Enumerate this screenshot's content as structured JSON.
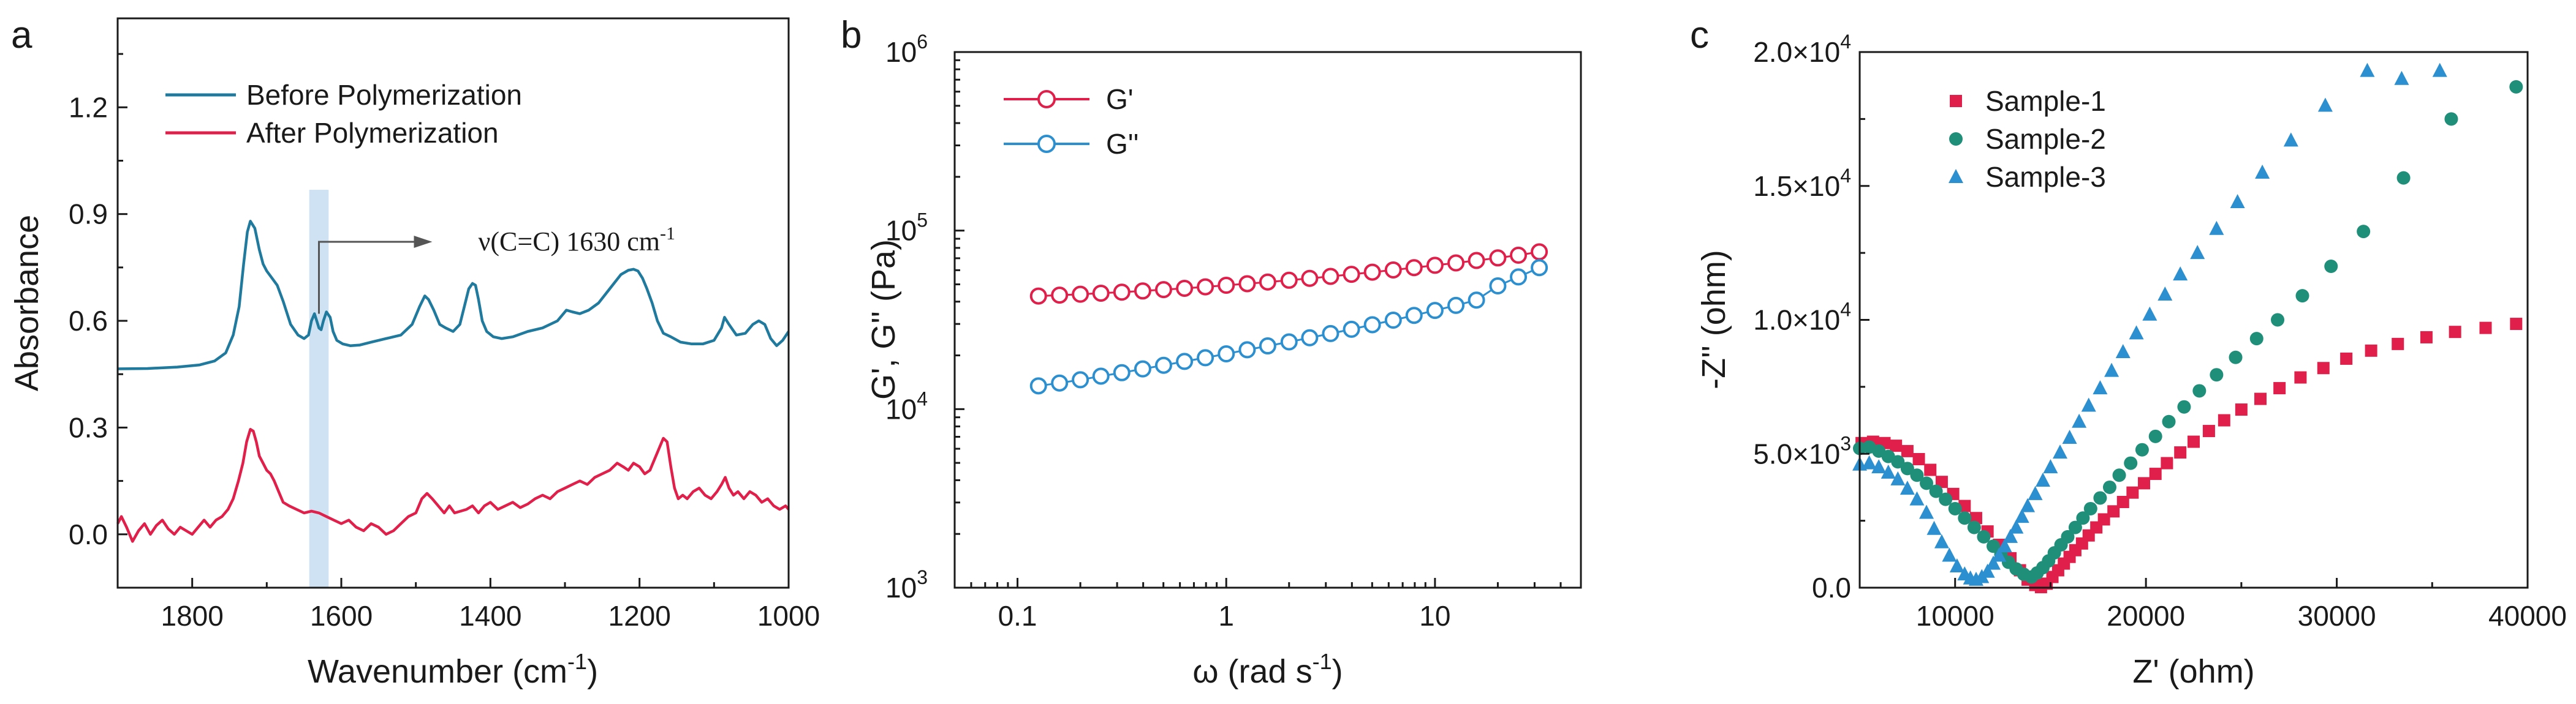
{
  "colors": {
    "teal_blue": "#1f7a9e",
    "crimson": "#e0204a",
    "light_blue": "#2b8fd0",
    "green": "#1f8f7a",
    "highlight": "#cfe2f3",
    "axis": "#1a1a1a"
  },
  "chart_data": [
    {
      "panel": "a",
      "type": "line",
      "xlabel": "Wavenumber (cm",
      "xlabel_sup": "-1",
      "xlabel_end": ")",
      "ylabel": "Absorbance",
      "xlim": [
        1900,
        1000
      ],
      "ylim": [
        -0.15,
        1.45
      ],
      "x_reversed": true,
      "xticks": [
        1800,
        1600,
        1400,
        1200,
        1000
      ],
      "yticks": [
        0.0,
        0.3,
        0.6,
        0.9,
        1.2
      ],
      "ytick_labels": [
        "0.0",
        "0.3",
        "0.6",
        "0.9",
        "1.2"
      ],
      "legend": "top-left",
      "annotation": {
        "text": "ν(C=C) 1630 cm",
        "sup": "-1",
        "x": 1630,
        "highlight_band": [
          1643,
          1617
        ]
      },
      "series": [
        {
          "name": "Before Polymerization",
          "color": "#1f7a9e",
          "x": [
            1900,
            1860,
            1820,
            1790,
            1770,
            1755,
            1745,
            1737,
            1731,
            1726,
            1722,
            1716,
            1710,
            1705,
            1700,
            1693,
            1686,
            1678,
            1668,
            1658,
            1650,
            1644,
            1640,
            1636,
            1633,
            1630,
            1627,
            1624,
            1620,
            1615,
            1611,
            1606,
            1598,
            1588,
            1575,
            1560,
            1540,
            1520,
            1505,
            1495,
            1488,
            1483,
            1476,
            1468,
            1460,
            1450,
            1441,
            1435,
            1429,
            1424,
            1420,
            1416,
            1411,
            1405,
            1396,
            1385,
            1370,
            1350,
            1330,
            1310,
            1298,
            1290,
            1280,
            1268,
            1255,
            1240,
            1225,
            1215,
            1208,
            1202,
            1196,
            1190,
            1183,
            1176,
            1168,
            1158,
            1145,
            1130,
            1115,
            1100,
            1090,
            1086,
            1080,
            1070,
            1058,
            1048,
            1040,
            1032,
            1024,
            1016,
            1008,
            1000
          ],
          "y": [
            0.465,
            0.466,
            0.47,
            0.476,
            0.487,
            0.51,
            0.56,
            0.64,
            0.76,
            0.85,
            0.88,
            0.86,
            0.8,
            0.76,
            0.74,
            0.72,
            0.7,
            0.655,
            0.59,
            0.56,
            0.55,
            0.56,
            0.6,
            0.62,
            0.6,
            0.58,
            0.575,
            0.6,
            0.625,
            0.61,
            0.57,
            0.545,
            0.535,
            0.53,
            0.532,
            0.54,
            0.55,
            0.56,
            0.59,
            0.64,
            0.67,
            0.66,
            0.63,
            0.59,
            0.58,
            0.57,
            0.59,
            0.64,
            0.69,
            0.705,
            0.7,
            0.66,
            0.6,
            0.57,
            0.555,
            0.55,
            0.555,
            0.57,
            0.58,
            0.6,
            0.63,
            0.625,
            0.62,
            0.63,
            0.65,
            0.69,
            0.73,
            0.742,
            0.745,
            0.74,
            0.72,
            0.69,
            0.65,
            0.6,
            0.565,
            0.555,
            0.54,
            0.535,
            0.535,
            0.545,
            0.58,
            0.61,
            0.59,
            0.56,
            0.565,
            0.59,
            0.6,
            0.59,
            0.55,
            0.53,
            0.545,
            0.57
          ]
        },
        {
          "name": "After Polymerization",
          "color": "#e0204a",
          "x": [
            1900,
            1895,
            1888,
            1880,
            1872,
            1864,
            1856,
            1848,
            1840,
            1832,
            1824,
            1816,
            1808,
            1800,
            1792,
            1784,
            1776,
            1768,
            1760,
            1752,
            1745,
            1738,
            1732,
            1727,
            1722,
            1718,
            1714,
            1710,
            1705,
            1700,
            1695,
            1690,
            1684,
            1678,
            1670,
            1660,
            1650,
            1640,
            1630,
            1620,
            1610,
            1600,
            1590,
            1580,
            1570,
            1560,
            1550,
            1540,
            1530,
            1520,
            1510,
            1500,
            1492,
            1485,
            1478,
            1470,
            1462,
            1455,
            1448,
            1440,
            1432,
            1424,
            1416,
            1408,
            1400,
            1390,
            1380,
            1370,
            1360,
            1350,
            1340,
            1330,
            1320,
            1310,
            1300,
            1290,
            1280,
            1270,
            1260,
            1250,
            1240,
            1230,
            1222,
            1215,
            1208,
            1200,
            1193,
            1186,
            1180,
            1174,
            1168,
            1163,
            1158,
            1153,
            1148,
            1142,
            1136,
            1128,
            1120,
            1112,
            1104,
            1096,
            1090,
            1085,
            1080,
            1074,
            1068,
            1060,
            1052,
            1044,
            1036,
            1028,
            1020,
            1012,
            1004,
            1000
          ],
          "y": [
            0.03,
            0.05,
            0.02,
            -0.02,
            0.01,
            0.03,
            0.0,
            0.025,
            0.04,
            0.015,
            0.0,
            0.02,
            0.01,
            0.0,
            0.02,
            0.04,
            0.02,
            0.04,
            0.05,
            0.07,
            0.1,
            0.15,
            0.2,
            0.26,
            0.295,
            0.29,
            0.26,
            0.22,
            0.2,
            0.18,
            0.17,
            0.15,
            0.12,
            0.09,
            0.08,
            0.07,
            0.06,
            0.065,
            0.06,
            0.05,
            0.04,
            0.03,
            0.04,
            0.02,
            0.01,
            0.03,
            0.02,
            0.0,
            0.01,
            0.03,
            0.05,
            0.06,
            0.1,
            0.115,
            0.1,
            0.08,
            0.06,
            0.08,
            0.06,
            0.065,
            0.07,
            0.08,
            0.06,
            0.08,
            0.09,
            0.07,
            0.08,
            0.09,
            0.075,
            0.085,
            0.1,
            0.11,
            0.1,
            0.12,
            0.13,
            0.14,
            0.15,
            0.14,
            0.16,
            0.17,
            0.18,
            0.2,
            0.19,
            0.18,
            0.2,
            0.19,
            0.17,
            0.18,
            0.21,
            0.24,
            0.27,
            0.26,
            0.19,
            0.13,
            0.1,
            0.11,
            0.1,
            0.12,
            0.13,
            0.11,
            0.1,
            0.12,
            0.14,
            0.16,
            0.13,
            0.11,
            0.12,
            0.1,
            0.12,
            0.11,
            0.09,
            0.1,
            0.08,
            0.07,
            0.08,
            0.07
          ]
        }
      ]
    },
    {
      "panel": "b",
      "type": "line",
      "xscale": "log",
      "yscale": "log",
      "xlabel": "ω (rad s",
      "xlabel_sup": "-1",
      "xlabel_end": ")",
      "ylabel": "G', G'' (Pa)",
      "xlim": [
        0.05,
        50
      ],
      "ylim": [
        1000,
        1000000
      ],
      "xticks": [
        0.1,
        1,
        10
      ],
      "xtick_labels": [
        "0.1",
        "1",
        "10"
      ],
      "yticks": [
        1000,
        10000,
        100000,
        1000000
      ],
      "ytick_base": "10",
      "ytick_exps": [
        "3",
        "4",
        "5",
        "6"
      ],
      "legend": "top-left",
      "marker": "open-circle",
      "series": [
        {
          "name": "G'",
          "color": "#e0204a",
          "x": [
            0.126,
            0.159,
            0.2,
            0.251,
            0.316,
            0.398,
            0.501,
            0.631,
            0.794,
            1.0,
            1.26,
            1.58,
            2.0,
            2.51,
            3.16,
            3.98,
            5.01,
            6.31,
            7.94,
            10.0,
            12.6,
            15.8,
            20.0,
            25.1,
            31.6
          ],
          "y": [
            43000,
            43500,
            44000,
            44600,
            45200,
            45900,
            46700,
            47500,
            48400,
            49400,
            50400,
            51500,
            52700,
            54000,
            55400,
            56900,
            58500,
            60200,
            62000,
            63900,
            65900,
            68000,
            70300,
            72800,
            76000
          ]
        },
        {
          "name": "G''",
          "color": "#2b8fd0",
          "x": [
            0.126,
            0.159,
            0.2,
            0.251,
            0.316,
            0.398,
            0.501,
            0.631,
            0.794,
            1.0,
            1.26,
            1.58,
            2.0,
            2.51,
            3.16,
            3.98,
            5.01,
            6.31,
            7.94,
            10.0,
            12.6,
            15.8,
            20.0,
            25.1,
            31.6
          ],
          "y": [
            13500,
            14000,
            14600,
            15300,
            16000,
            16800,
            17600,
            18500,
            19400,
            20400,
            21500,
            22600,
            23800,
            25100,
            26500,
            28000,
            29700,
            31500,
            33500,
            35700,
            38100,
            40800,
            49000,
            55000,
            62000
          ]
        }
      ]
    },
    {
      "panel": "c",
      "type": "scatter",
      "xlabel": "Z' (ohm)",
      "ylabel": "-Z'' (ohm)",
      "xlim": [
        5000,
        40000
      ],
      "ylim": [
        0,
        20000
      ],
      "xticks": [
        10000,
        20000,
        30000,
        40000
      ],
      "xtick_labels": [
        "10000",
        "20000",
        "30000",
        "40000"
      ],
      "yticks": [
        0,
        5000,
        10000,
        15000,
        20000
      ],
      "ytick_mantissas": [
        "0.0",
        "5.0×10",
        "1.0×10",
        "1.5×10",
        "2.0×10"
      ],
      "ytick_exps": [
        "",
        "3",
        "4",
        "4",
        "4"
      ],
      "legend": "top-left",
      "series": [
        {
          "name": "Sample-1",
          "color": "#e0204a",
          "marker": "square",
          "x": [
            5100,
            5700,
            6300,
            6900,
            7500,
            8100,
            8700,
            9300,
            9900,
            10500,
            11100,
            11700,
            12300,
            12900,
            13400,
            13800,
            14200,
            14500,
            14800,
            15100,
            15400,
            15700,
            16000,
            16300,
            16650,
            17000,
            17400,
            17800,
            18300,
            18800,
            19300,
            19900,
            20500,
            21100,
            21800,
            22500,
            23300,
            24100,
            25000,
            26000,
            27000,
            28100,
            29300,
            30500,
            31800,
            33200,
            34700,
            36200,
            37800,
            39400
          ],
          "y": [
            5400,
            5450,
            5400,
            5300,
            5100,
            4800,
            4400,
            3950,
            3500,
            3050,
            2600,
            2100,
            1600,
            1100,
            650,
            300,
            100,
            20,
            150,
            400,
            650,
            900,
            1150,
            1400,
            1650,
            1950,
            2250,
            2550,
            2850,
            3200,
            3550,
            3900,
            4250,
            4650,
            5050,
            5450,
            5850,
            6250,
            6650,
            7050,
            7450,
            7850,
            8200,
            8550,
            8850,
            9100,
            9350,
            9550,
            9700,
            9850
          ]
        },
        {
          "name": "Sample-2",
          "color": "#1f8f7a",
          "marker": "circle",
          "x": [
            5000,
            5500,
            6000,
            6500,
            7000,
            7500,
            8000,
            8500,
            9000,
            9500,
            10000,
            10500,
            11000,
            11500,
            12000,
            12400,
            12800,
            13200,
            13600,
            14000,
            14300,
            14600,
            14900,
            15200,
            15550,
            15900,
            16300,
            16700,
            17100,
            17600,
            18100,
            18600,
            19200,
            19800,
            20500,
            21200,
            22000,
            22800,
            23700,
            24700,
            25800,
            26900,
            28200,
            29700,
            31400,
            33500,
            36000,
            39400
          ],
          "y": [
            5200,
            5250,
            5100,
            4900,
            4700,
            4450,
            4200,
            3900,
            3600,
            3300,
            2950,
            2600,
            2250,
            1900,
            1550,
            1250,
            950,
            700,
            500,
            400,
            550,
            750,
            1000,
            1300,
            1600,
            1900,
            2250,
            2600,
            2950,
            3350,
            3750,
            4200,
            4650,
            5150,
            5650,
            6200,
            6750,
            7350,
            7950,
            8600,
            9300,
            10000,
            10900,
            12000,
            13300,
            15300,
            17500,
            18700
          ]
        },
        {
          "name": "Sample-3",
          "color": "#2b8fd0",
          "marker": "triangle",
          "x": [
            5000,
            5500,
            6000,
            6500,
            7000,
            7500,
            8000,
            8500,
            8900,
            9300,
            9700,
            10100,
            10500,
            10800,
            11100,
            11400,
            11700,
            12000,
            12300,
            12600,
            12900,
            13200,
            13500,
            13800,
            14200,
            14600,
            15000,
            15500,
            16000,
            16500,
            17000,
            17600,
            18200,
            18800,
            19500,
            20200,
            21000,
            21800,
            22700,
            23700,
            24800,
            26100,
            27600,
            29400,
            31600,
            33400,
            35400
          ],
          "y": [
            4600,
            4650,
            4500,
            4300,
            4050,
            3700,
            3300,
            2800,
            2200,
            1700,
            1200,
            800,
            500,
            350,
            300,
            400,
            600,
            900,
            1200,
            1550,
            1900,
            2250,
            2650,
            3050,
            3500,
            4000,
            4500,
            5050,
            5600,
            6200,
            6800,
            7450,
            8100,
            8800,
            9500,
            10200,
            10950,
            11700,
            12500,
            13400,
            14400,
            15500,
            16700,
            18000,
            19300,
            19000,
            19300
          ]
        }
      ]
    }
  ]
}
